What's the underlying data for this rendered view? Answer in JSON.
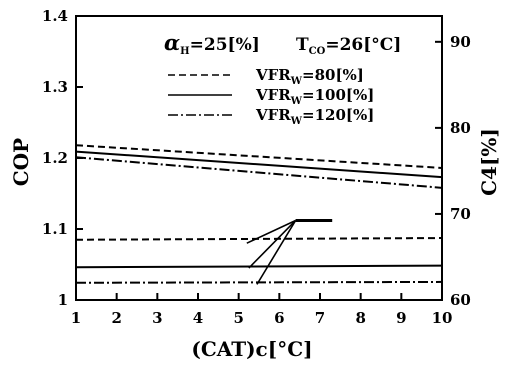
{
  "chart_data": {
    "type": "line",
    "x_axis": {
      "label": "(CAT)c[°C]",
      "range": [
        1,
        10
      ],
      "ticks": [
        "1",
        "2",
        "3",
        "4",
        "5",
        "6",
        "7",
        "8",
        "9",
        "10"
      ]
    },
    "y_axis_left": {
      "label": "COP",
      "range": [
        1.0,
        1.4
      ],
      "ticks": [
        {
          "v": 1.0,
          "t": "1"
        },
        {
          "v": 1.1,
          "t": "1.1"
        },
        {
          "v": 1.2,
          "t": "1.2"
        },
        {
          "v": 1.3,
          "t": "1.3"
        },
        {
          "v": 1.4,
          "t": "1.4"
        }
      ]
    },
    "y_axis_right": {
      "label": "C4[%]",
      "range": [
        60,
        93
      ],
      "ticks": [
        {
          "v": 60,
          "t": "60"
        },
        {
          "v": 70,
          "t": "70"
        },
        {
          "v": 80,
          "t": "80"
        },
        {
          "v": 90,
          "t": "90"
        }
      ]
    },
    "parameters": {
      "alpha_label": "α",
      "alpha_sub": "H",
      "alpha_value": "=25[%]",
      "t_label": "T",
      "t_sub": "CO",
      "t_value": "=26[°C]"
    },
    "legend": [
      {
        "name_base": "VFR",
        "name_sub": "W",
        "value": "=80[%]",
        "style": "dashed"
      },
      {
        "name_base": "VFR",
        "name_sub": "W",
        "value": "=100[%]",
        "style": "solid"
      },
      {
        "name_base": "VFR",
        "name_sub": "W",
        "value": "=120[%]",
        "style": "dashdot"
      }
    ],
    "series": [
      {
        "style": "dashed",
        "axis": "left",
        "x": [
          1,
          10
        ],
        "y": [
          1.218,
          1.186
        ]
      },
      {
        "style": "solid",
        "axis": "left",
        "x": [
          1,
          10
        ],
        "y": [
          1.209,
          1.173
        ]
      },
      {
        "style": "dashdot",
        "axis": "left",
        "x": [
          1,
          10
        ],
        "y": [
          1.201,
          1.158
        ]
      },
      {
        "style": "dashed",
        "axis": "right",
        "x": [
          1,
          10
        ],
        "y": [
          67.0,
          67.2
        ]
      },
      {
        "style": "solid",
        "axis": "right",
        "x": [
          1,
          10
        ],
        "y": [
          63.8,
          64.0
        ]
      },
      {
        "style": "dashdot",
        "axis": "right",
        "x": [
          1,
          10
        ],
        "y": [
          62.0,
          62.1
        ]
      }
    ],
    "pointer": {
      "tip": [
        6.4,
        1.112
      ],
      "tail_end": [
        7.3,
        1.112
      ],
      "targets": [
        [
          5.2,
          1.08
        ],
        [
          5.25,
          1.045
        ],
        [
          5.45,
          1.022
        ]
      ]
    },
    "grid": false,
    "legend_placement": "top-center"
  }
}
